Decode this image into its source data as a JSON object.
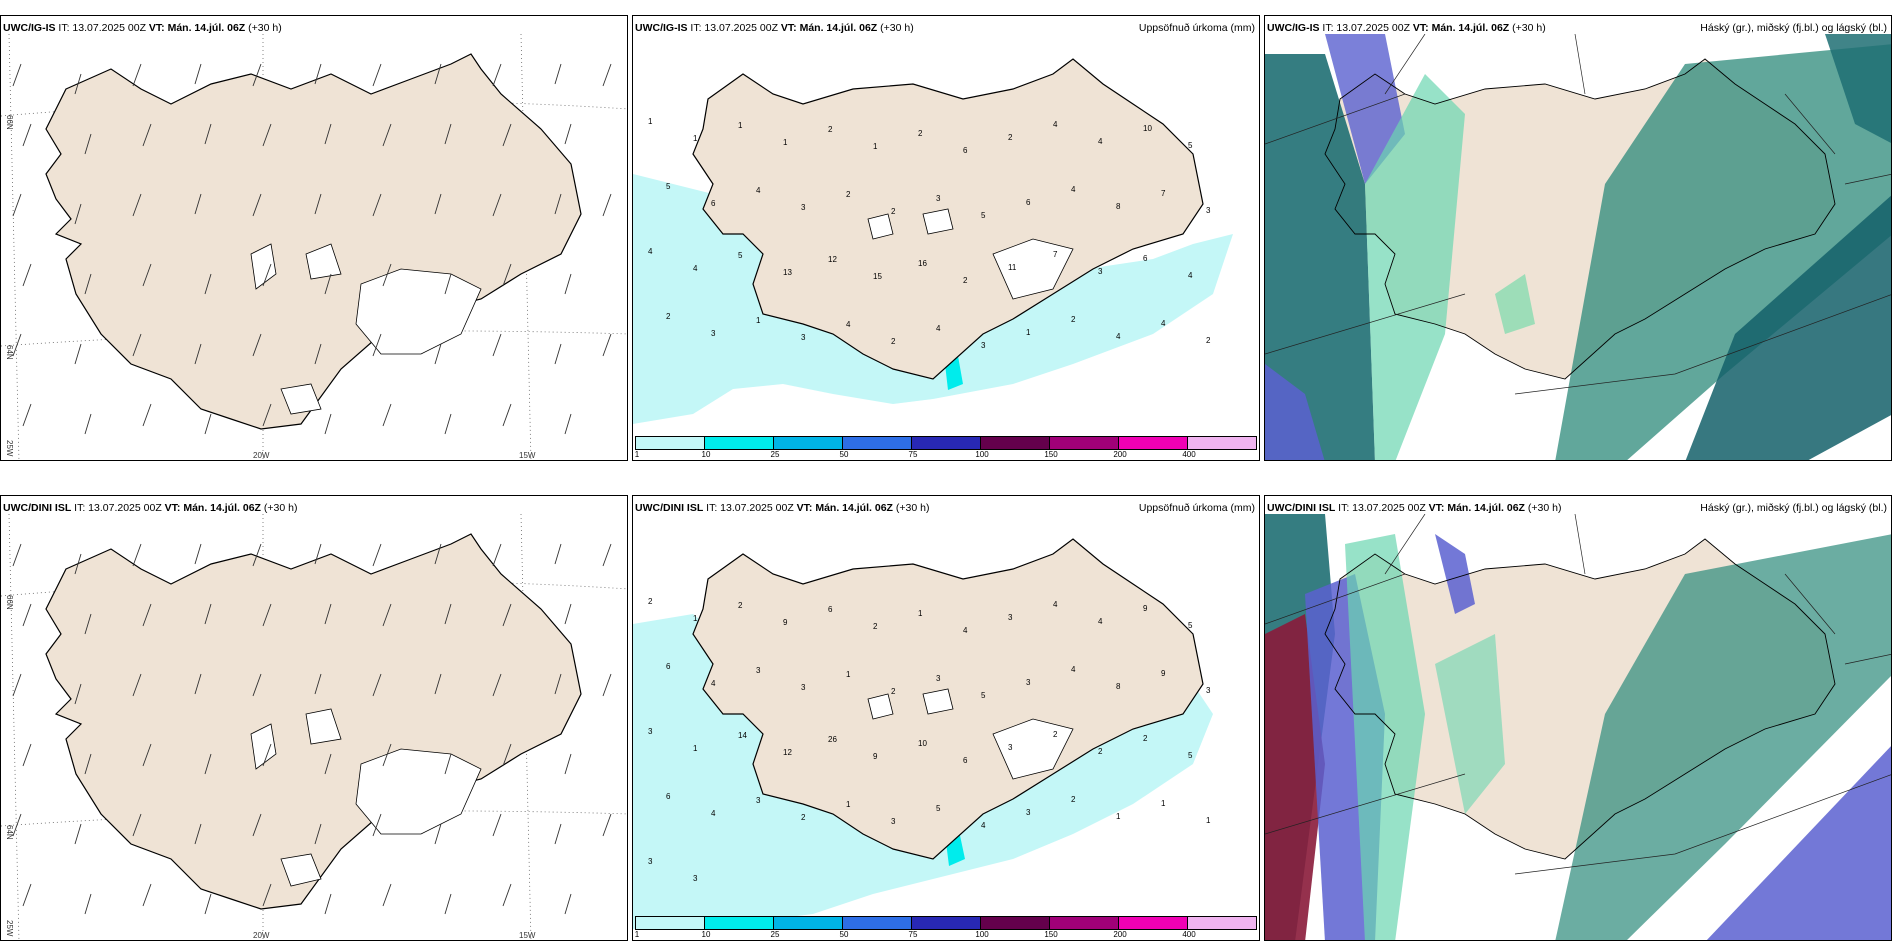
{
  "panels": {
    "wind_top": {
      "model": "UWC/IG-IS",
      "it": "IT: 13.07.2025 00Z",
      "vt": "VT: Mán. 14.júl. 06Z",
      "lead": "(+30 h)"
    },
    "precip_top": {
      "model": "UWC/IG-IS",
      "it": "IT: 13.07.2025 00Z",
      "vt": "VT: Mán. 14.júl. 06Z",
      "lead": "(+30 h)",
      "right_title": "Uppsöfnuð úrkoma (mm)"
    },
    "cloud_top": {
      "model": "UWC/IG-IS",
      "it": "IT: 13.07.2025 00Z",
      "vt": "VT: Mán. 14.júl. 06Z",
      "lead": "(+30 h)",
      "right_title": "Háský (gr.), miðský (fj.bl.) og lágský (bl.)"
    },
    "wind_bottom": {
      "model": "UWC/DINI ISL",
      "it": "IT: 13.07.2025 00Z",
      "vt": "VT: Mán. 14.júl. 06Z",
      "lead": "(+30 h)"
    },
    "precip_bottom": {
      "model": "UWC/DINI ISL",
      "it": "IT: 13.07.2025 00Z",
      "vt": "VT: Mán. 14.júl. 06Z",
      "lead": "(+30 h)",
      "right_title": "Uppsöfnuð úrkoma (mm)"
    },
    "cloud_bottom": {
      "model": "UWC/DINI ISL",
      "it": "IT: 13.07.2025 00Z",
      "vt": "VT: Mán. 14.júl. 06Z",
      "lead": "(+30 h)",
      "right_title": "Háský (gr.), miðský (fj.bl.) og lágský (bl.)"
    }
  },
  "axis_labels": {
    "lat66": "66N",
    "lat64": "64N",
    "lon25": "25W",
    "lon20": "20W",
    "lon15": "15W"
  },
  "precip_legend": {
    "labels": [
      "1",
      "10",
      "25",
      "50",
      "75",
      "100",
      "150",
      "200",
      "400"
    ],
    "colors": [
      "#c4f7f7",
      "#00ecec",
      "#00b4e6",
      "#2e6ee6",
      "#2828b4",
      "#64004c",
      "#a00078",
      "#f000b4",
      "#f0b4f0"
    ]
  },
  "precip_values_top": [
    "1",
    "1",
    "1",
    "1",
    "2",
    "1",
    "2",
    "6",
    "2",
    "4",
    "4",
    "10",
    "5",
    "5",
    "6",
    "4",
    "3",
    "2",
    "2",
    "3",
    "5",
    "6",
    "4",
    "8",
    "7",
    "3",
    "4",
    "4",
    "5",
    "13",
    "12",
    "15",
    "16",
    "2",
    "11",
    "7",
    "3",
    "6",
    "4",
    "2",
    "3",
    "1",
    "3",
    "4",
    "2",
    "4",
    "3",
    "1",
    "2",
    "4",
    "4",
    "2"
  ],
  "precip_values_bottom": [
    "2",
    "1",
    "2",
    "9",
    "6",
    "2",
    "1",
    "4",
    "3",
    "4",
    "4",
    "9",
    "5",
    "6",
    "4",
    "3",
    "3",
    "1",
    "2",
    "3",
    "5",
    "3",
    "4",
    "8",
    "9",
    "3",
    "3",
    "1",
    "14",
    "12",
    "26",
    "9",
    "10",
    "6",
    "3",
    "2",
    "2",
    "2",
    "5",
    "6",
    "4",
    "3",
    "2",
    "1",
    "3",
    "5",
    "4",
    "3",
    "2",
    "1",
    "1",
    "1",
    "3",
    "3"
  ]
}
